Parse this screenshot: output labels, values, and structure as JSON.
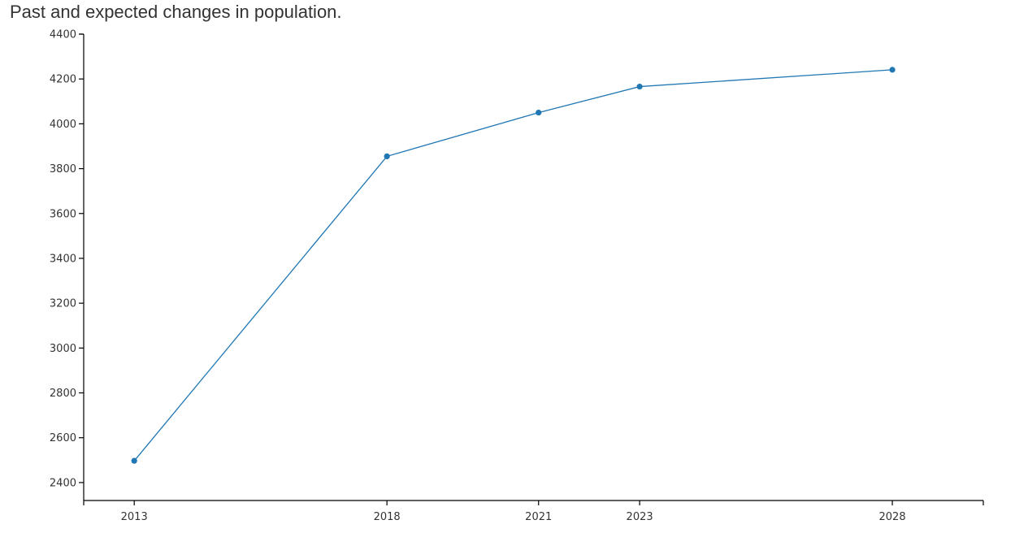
{
  "chart_data": {
    "type": "line",
    "title": "Past and expected changes in population.",
    "xlabel": "",
    "ylabel": "",
    "x": [
      2013,
      2018,
      2021,
      2023,
      2028
    ],
    "x_tick_labels": [
      "2013",
      "2018",
      "2021",
      "2023",
      "2028"
    ],
    "xlim": [
      2012,
      2029.8
    ],
    "series": [
      {
        "values": [
          2497,
          3855,
          4050,
          4166,
          4241
        ],
        "color": "#1f77b4"
      }
    ],
    "ylim": [
      2320,
      4400
    ],
    "y_ticks": [
      2400,
      2600,
      2800,
      3000,
      3200,
      3400,
      3600,
      3800,
      4000,
      4200,
      4400
    ],
    "grid": false,
    "legend": "none"
  }
}
